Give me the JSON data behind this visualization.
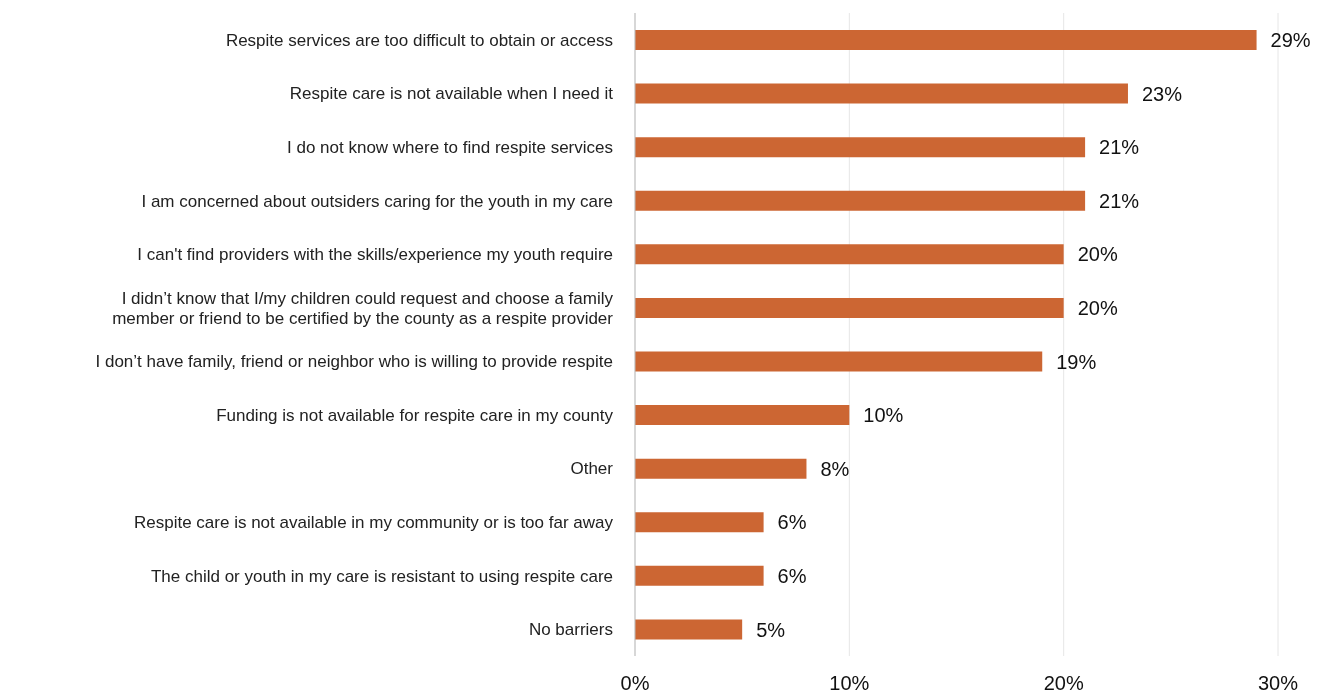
{
  "chart_data": {
    "type": "bar",
    "orientation": "horizontal",
    "categories": [
      "Respite services are too difficult to obtain or access",
      "Respite care is not available when I need it",
      "I do not know where to find respite services",
      "I am concerned about outsiders caring for the youth in my care",
      "I can't find providers with the skills/experience my youth require",
      "I didn’t know that I/my children could request and choose a family member or friend to be certified by the county as a respite provider",
      "I don’t have family, friend or neighbor who is willing to provide respite",
      "Funding is not available for respite care in my county",
      "Other",
      "Respite care is not available in my community or is too far away",
      "The child or youth in my care is resistant to using respite care",
      "No barriers"
    ],
    "values": [
      29,
      23,
      21,
      21,
      20,
      20,
      19,
      10,
      8,
      6,
      6,
      5
    ],
    "value_labels": [
      "29%",
      "23%",
      "21%",
      "21%",
      "20%",
      "20%",
      "19%",
      "10%",
      "8%",
      "6%",
      "6%",
      "5%"
    ],
    "color": "#cc6633",
    "xlim": [
      0,
      30
    ],
    "xticks": [
      {
        "value": 0,
        "label": "0%"
      },
      {
        "value": 10,
        "label": "10%"
      },
      {
        "value": 20,
        "label": "20%"
      },
      {
        "value": 30,
        "label": "30%"
      }
    ],
    "grid": "x"
  }
}
